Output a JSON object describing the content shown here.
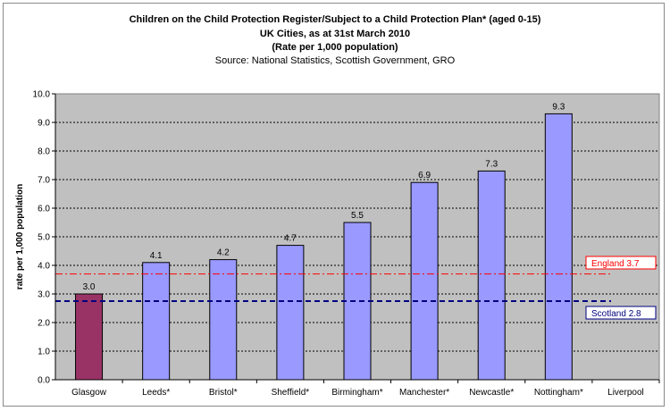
{
  "chart_data": {
    "type": "bar",
    "title_lines": [
      "Children on the Child Protection Register/Subject to a Child Protection Plan* (aged 0-15)",
      "UK Cities, as at 31st March 2010",
      "(Rate per 1,000 population)"
    ],
    "subtitle": "Source: National Statistics, Scottish Government, GRO",
    "categories": [
      "Glasgow",
      "Leeds*",
      "Bristol*",
      "Sheffield*",
      "Birmingham*",
      "Manchester*",
      "Newcastle*",
      "Nottingham*",
      "Liverpool"
    ],
    "values": [
      3.0,
      4.1,
      4.2,
      4.7,
      5.5,
      6.9,
      7.3,
      9.3,
      null
    ],
    "value_labels": [
      "3.0",
      "4.1",
      "4.2",
      "4.7",
      "5.5",
      "6.9",
      "7.3",
      "9.3",
      ""
    ],
    "highlight_category": "Glasgow",
    "ylabel": "rate per 1,000 population",
    "xlabel": "",
    "ylim": [
      0,
      10
    ],
    "yticks": [
      "0.0",
      "1.0",
      "2.0",
      "3.0",
      "4.0",
      "5.0",
      "6.0",
      "7.0",
      "8.0",
      "9.0",
      "10.0"
    ],
    "reference_lines": [
      {
        "name": "England",
        "label": "England 3.7",
        "value": 3.7,
        "style": "dash-dot",
        "color": "#ff0000"
      },
      {
        "name": "Scotland",
        "label": "Scotland 2.8",
        "value": 2.75,
        "style": "dashed",
        "color": "#000080"
      }
    ],
    "colors": {
      "bar": "#9999ff",
      "highlight": "#993366",
      "plot_background": "#c0c0c0",
      "gridline": "#000000"
    },
    "grid": true
  }
}
